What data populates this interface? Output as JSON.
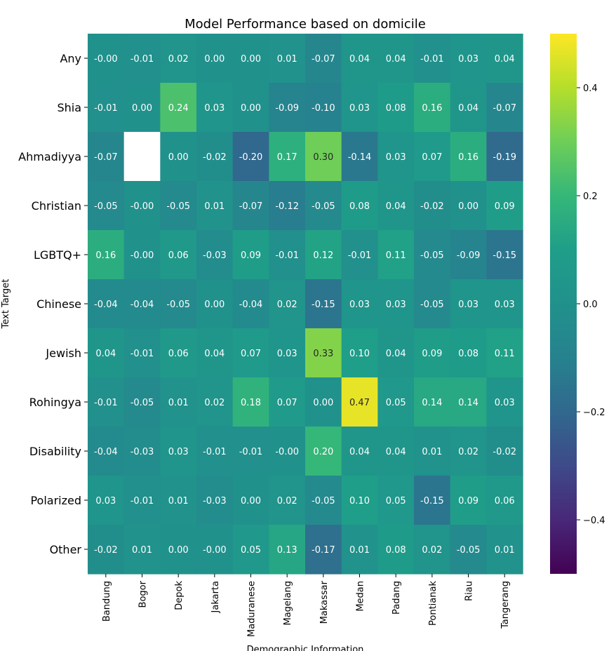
{
  "chart_data": {
    "type": "heatmap",
    "title": "Model Performance based on domicile",
    "xlabel": "Demographic Information",
    "ylabel": "Text Target",
    "x_categories": [
      "Bandung",
      "Bogor",
      "Depok",
      "Jakarta",
      "Maduranese",
      "Magelang",
      "Makassar",
      "Medan",
      "Padang",
      "Pontianak",
      "Riau",
      "Tangerang"
    ],
    "y_categories": [
      "Any",
      "Shia",
      "Ahmadiyya",
      "Christian",
      "LGBTQ+",
      "Chinese",
      "Jewish",
      "Rohingya",
      "Disability",
      "Polarized",
      "Other"
    ],
    "values": [
      [
        -0.0,
        -0.01,
        0.02,
        0.0,
        0.0,
        0.01,
        -0.07,
        0.04,
        0.04,
        -0.01,
        0.03,
        0.04
      ],
      [
        -0.01,
        0.0,
        0.24,
        0.03,
        0.0,
        -0.09,
        -0.1,
        0.03,
        0.08,
        0.16,
        0.04,
        -0.07
      ],
      [
        -0.07,
        null,
        0.0,
        -0.02,
        -0.2,
        0.17,
        0.3,
        -0.14,
        0.03,
        0.07,
        0.16,
        -0.19
      ],
      [
        -0.05,
        -0.0,
        -0.05,
        0.01,
        -0.07,
        -0.12,
        -0.05,
        0.08,
        0.04,
        -0.02,
        0.0,
        0.09
      ],
      [
        0.16,
        -0.0,
        0.06,
        -0.03,
        0.09,
        -0.01,
        0.12,
        -0.01,
        0.11,
        -0.05,
        -0.09,
        -0.15
      ],
      [
        -0.04,
        -0.04,
        -0.05,
        0.0,
        -0.04,
        0.02,
        -0.15,
        0.03,
        0.03,
        -0.05,
        0.03,
        0.03
      ],
      [
        0.04,
        -0.01,
        0.06,
        0.04,
        0.07,
        0.03,
        0.33,
        0.1,
        0.04,
        0.09,
        0.08,
        0.11
      ],
      [
        -0.01,
        -0.05,
        0.01,
        0.02,
        0.18,
        0.07,
        0.0,
        0.47,
        0.05,
        0.14,
        0.14,
        0.03
      ],
      [
        -0.04,
        -0.03,
        0.03,
        -0.01,
        -0.01,
        -0.0,
        0.2,
        0.04,
        0.04,
        0.01,
        0.02,
        -0.02
      ],
      [
        0.03,
        -0.01,
        0.01,
        -0.03,
        0.0,
        0.02,
        -0.05,
        0.1,
        0.05,
        -0.15,
        0.09,
        0.06
      ],
      [
        -0.02,
        0.01,
        0.0,
        -0.0,
        0.05,
        0.13,
        -0.17,
        0.01,
        0.08,
        0.02,
        -0.05,
        0.01
      ]
    ],
    "cell_labels": [
      [
        "-0.00",
        "-0.01",
        "0.02",
        "0.00",
        "0.00",
        "0.01",
        "-0.07",
        "0.04",
        "0.04",
        "-0.01",
        "0.03",
        "0.04"
      ],
      [
        "-0.01",
        "0.00",
        "0.24",
        "0.03",
        "0.00",
        "-0.09",
        "-0.10",
        "0.03",
        "0.08",
        "0.16",
        "0.04",
        "-0.07"
      ],
      [
        "-0.07",
        "",
        "0.00",
        "-0.02",
        "-0.20",
        "0.17",
        "0.30",
        "-0.14",
        "0.03",
        "0.07",
        "0.16",
        "-0.19"
      ],
      [
        "-0.05",
        "-0.00",
        "-0.05",
        "0.01",
        "-0.07",
        "-0.12",
        "-0.05",
        "0.08",
        "0.04",
        "-0.02",
        "0.00",
        "0.09"
      ],
      [
        "0.16",
        "-0.00",
        "0.06",
        "-0.03",
        "0.09",
        "-0.01",
        "0.12",
        "-0.01",
        "0.11",
        "-0.05",
        "-0.09",
        "-0.15"
      ],
      [
        "-0.04",
        "-0.04",
        "-0.05",
        "0.00",
        "-0.04",
        "0.02",
        "-0.15",
        "0.03",
        "0.03",
        "-0.05",
        "0.03",
        "0.03"
      ],
      [
        "0.04",
        "-0.01",
        "0.06",
        "0.04",
        "0.07",
        "0.03",
        "0.33",
        "0.10",
        "0.04",
        "0.09",
        "0.08",
        "0.11"
      ],
      [
        "-0.01",
        "-0.05",
        "0.01",
        "0.02",
        "0.18",
        "0.07",
        "0.00",
        "0.47",
        "0.05",
        "0.14",
        "0.14",
        "0.03"
      ],
      [
        "-0.04",
        "-0.03",
        "0.03",
        "-0.01",
        "-0.01",
        "-0.00",
        "0.20",
        "0.04",
        "0.04",
        "0.01",
        "0.02",
        "-0.02"
      ],
      [
        "0.03",
        "-0.01",
        "0.01",
        "-0.03",
        "0.00",
        "0.02",
        "-0.05",
        "0.10",
        "0.05",
        "-0.15",
        "0.09",
        "0.06"
      ],
      [
        "-0.02",
        "0.01",
        "0.00",
        "-0.00",
        "0.05",
        "0.13",
        "-0.17",
        "0.01",
        "0.08",
        "0.02",
        "-0.05",
        "0.01"
      ]
    ],
    "colormap": "viridis",
    "vmin": -0.5,
    "vmax": 0.5,
    "colorbar_ticks": [
      0.4,
      0.2,
      0.0,
      -0.2,
      -0.4
    ],
    "colorbar_tick_labels": [
      "0.4",
      "0.2",
      "0.0",
      "−0.2",
      "−0.4"
    ],
    "missing_color": "#ffffff"
  }
}
